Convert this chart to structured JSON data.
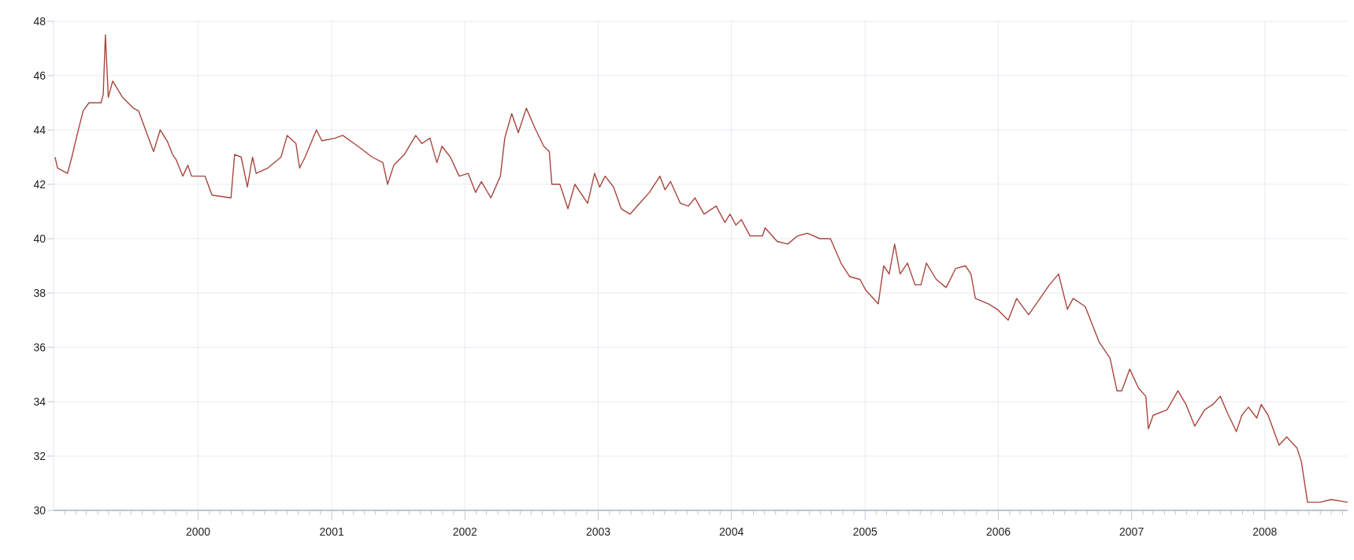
{
  "chart_data": {
    "type": "line",
    "color": "#a8463e",
    "marker": "none",
    "line_style": "solid",
    "grid": true,
    "x": [
      "1998-12-05",
      "1998-12-12",
      "1999-01-08",
      "1999-01-20",
      "1999-02-05",
      "1999-02-20",
      "1999-03-08",
      "1999-04-10",
      "1999-04-16",
      "1999-04-22",
      "1999-04-30",
      "1999-05-12",
      "1999-06-08",
      "1999-07-08",
      "1999-07-22",
      "1999-08-10",
      "1999-09-01",
      "1999-09-19",
      "1999-10-08",
      "1999-10-23",
      "1999-11-02",
      "1999-11-20",
      "1999-12-04",
      "1999-12-14",
      "2000-01-20",
      "2000-02-08",
      "2000-03-31",
      "2000-04-10",
      "2000-04-28",
      "2000-05-15",
      "2000-05-29",
      "2000-06-08",
      "2000-07-10",
      "2000-08-15",
      "2000-09-01",
      "2000-09-25",
      "2000-10-05",
      "2000-10-20",
      "2000-11-20",
      "2000-12-05",
      "2001-01-10",
      "2001-01-31",
      "2001-03-14",
      "2001-04-22",
      "2001-05-21",
      "2001-06-03",
      "2001-06-20",
      "2001-07-19",
      "2001-08-19",
      "2001-09-05",
      "2001-09-27",
      "2001-10-16",
      "2001-10-30",
      "2001-11-22",
      "2001-12-16",
      "2002-01-10",
      "2002-01-30",
      "2002-02-15",
      "2002-03-13",
      "2002-04-08",
      "2002-04-20",
      "2002-05-09",
      "2002-05-27",
      "2002-06-18",
      "2002-07-14",
      "2002-08-05",
      "2002-08-20",
      "2002-08-27",
      "2002-09-18",
      "2002-10-10",
      "2002-10-29",
      "2002-12-03",
      "2002-12-22",
      "2003-01-05",
      "2003-01-20",
      "2003-02-12",
      "2003-03-05",
      "2003-03-29",
      "2003-05-01",
      "2003-05-21",
      "2003-06-19",
      "2003-07-03",
      "2003-07-18",
      "2003-08-14",
      "2003-09-05",
      "2003-09-23",
      "2003-10-18",
      "2003-11-20",
      "2003-12-14",
      "2003-12-28",
      "2004-01-13",
      "2004-01-28",
      "2004-02-21",
      "2004-03-26",
      "2004-04-02",
      "2004-05-05",
      "2004-06-03",
      "2004-06-30",
      "2004-07-27",
      "2004-08-30",
      "2004-09-28",
      "2004-10-27",
      "2004-11-20",
      "2004-12-18",
      "2005-01-03",
      "2005-02-06",
      "2005-02-21",
      "2005-03-08",
      "2005-03-23",
      "2005-04-07",
      "2005-04-27",
      "2005-05-18",
      "2005-06-03",
      "2005-06-18",
      "2005-07-15",
      "2005-08-11",
      "2005-09-06",
      "2005-10-03",
      "2005-10-18",
      "2005-10-30",
      "2005-12-05",
      "2005-12-29",
      "2006-01-28",
      "2006-02-20",
      "2006-03-25",
      "2006-05-21",
      "2006-06-15",
      "2006-07-09",
      "2006-07-25",
      "2006-08-27",
      "2006-10-04",
      "2006-11-03",
      "2006-11-22",
      "2006-12-05",
      "2006-12-27",
      "2007-01-20",
      "2007-02-09",
      "2007-02-16",
      "2007-03-01",
      "2007-04-08",
      "2007-05-08",
      "2007-05-30",
      "2007-06-23",
      "2007-07-20",
      "2007-08-12",
      "2007-09-01",
      "2007-09-20",
      "2007-10-15",
      "2007-10-30",
      "2007-11-17",
      "2007-12-10",
      "2007-12-22",
      "2008-01-10",
      "2008-02-09",
      "2008-03-01",
      "2008-03-29",
      "2008-04-10",
      "2008-04-27",
      "2008-05-31",
      "2008-07-01",
      "2008-08-15"
    ],
    "values": [
      43.0,
      42.6,
      42.4,
      43.0,
      43.9,
      44.7,
      45.0,
      45.0,
      45.3,
      47.5,
      45.2,
      45.8,
      45.2,
      44.8,
      44.7,
      44.0,
      43.2,
      44.0,
      43.6,
      43.1,
      42.9,
      42.3,
      42.7,
      42.3,
      42.3,
      41.6,
      41.5,
      43.1,
      43.0,
      41.9,
      43.0,
      42.4,
      42.6,
      43.0,
      43.8,
      43.5,
      42.6,
      43.0,
      44.0,
      43.6,
      43.7,
      43.8,
      43.4,
      43.0,
      42.8,
      42.0,
      42.7,
      43.1,
      43.8,
      43.5,
      43.7,
      42.8,
      43.4,
      43.0,
      42.3,
      42.4,
      41.7,
      42.1,
      41.5,
      42.3,
      43.7,
      44.6,
      43.9,
      44.8,
      44.0,
      43.4,
      43.2,
      42.0,
      42.0,
      41.1,
      42.0,
      41.3,
      42.4,
      41.9,
      42.3,
      41.9,
      41.1,
      40.9,
      41.4,
      41.7,
      42.3,
      41.8,
      42.1,
      41.3,
      41.2,
      41.5,
      40.9,
      41.2,
      40.6,
      40.9,
      40.5,
      40.7,
      40.1,
      40.1,
      40.4,
      39.9,
      39.8,
      40.1,
      40.2,
      40.0,
      40.0,
      39.1,
      38.6,
      38.5,
      38.1,
      37.6,
      39.0,
      38.7,
      39.8,
      38.7,
      39.1,
      38.3,
      38.3,
      39.1,
      38.5,
      38.2,
      38.9,
      39.0,
      38.7,
      37.8,
      37.6,
      37.4,
      37.0,
      37.8,
      37.2,
      38.3,
      38.7,
      37.4,
      37.8,
      37.5,
      36.2,
      35.6,
      34.4,
      34.4,
      35.2,
      34.5,
      34.2,
      33.0,
      33.5,
      33.7,
      34.4,
      33.9,
      33.1,
      33.7,
      33.9,
      34.2,
      33.6,
      32.9,
      33.5,
      33.8,
      33.4,
      33.9,
      33.5,
      32.4,
      32.7,
      32.3,
      31.8,
      30.3,
      30.3,
      30.4,
      30.3
    ],
    "xlim": [
      "1998-12-01",
      "2008-08-15"
    ],
    "xticks": [
      {
        "value": "1999-01",
        "label": null
      },
      {
        "value": "1999-02",
        "label": null
      },
      {
        "value": "1999-03",
        "label": null
      },
      {
        "value": "1999-04",
        "label": null
      },
      {
        "value": "1999-05",
        "label": null
      },
      {
        "value": "1999-06",
        "label": null
      },
      {
        "value": "1999-07",
        "label": null
      },
      {
        "value": "1999-08",
        "label": null
      },
      {
        "value": "1999-09",
        "label": null
      },
      {
        "value": "1999-10",
        "label": null
      },
      {
        "value": "1999-11",
        "label": null
      },
      {
        "value": "1999-12",
        "label": null
      },
      "2000",
      {
        "value": "2000-02",
        "label": null
      },
      {
        "value": "2000-03",
        "label": null
      },
      {
        "value": "2000-04",
        "label": null
      },
      {
        "value": "2000-05",
        "label": null
      },
      {
        "value": "2000-06",
        "label": null
      },
      {
        "value": "2000-07",
        "label": null
      },
      {
        "value": "2000-08",
        "label": null
      },
      {
        "value": "2000-09",
        "label": null
      },
      {
        "value": "2000-10",
        "label": null
      },
      {
        "value": "2000-11",
        "label": null
      },
      {
        "value": "2000-12",
        "label": null
      },
      "2001",
      {
        "value": "2001-02",
        "label": null
      },
      {
        "value": "2001-03",
        "label": null
      },
      {
        "value": "2001-04",
        "label": null
      },
      {
        "value": "2001-05",
        "label": null
      },
      {
        "value": "2001-06",
        "label": null
      },
      {
        "value": "2001-07",
        "label": null
      },
      {
        "value": "2001-08",
        "label": null
      },
      {
        "value": "2001-09",
        "label": null
      },
      {
        "value": "2001-10",
        "label": null
      },
      {
        "value": "2001-11",
        "label": null
      },
      {
        "value": "2001-12",
        "label": null
      },
      "2002",
      {
        "value": "2002-02",
        "label": null
      },
      {
        "value": "2002-03",
        "label": null
      },
      {
        "value": "2002-04",
        "label": null
      },
      {
        "value": "2002-05",
        "label": null
      },
      {
        "value": "2002-06",
        "label": null
      },
      {
        "value": "2002-07",
        "label": null
      },
      {
        "value": "2002-08",
        "label": null
      },
      {
        "value": "2002-09",
        "label": null
      },
      {
        "value": "2002-10",
        "label": null
      },
      {
        "value": "2002-11",
        "label": null
      },
      {
        "value": "2002-12",
        "label": null
      },
      "2003",
      {
        "value": "2003-02",
        "label": null
      },
      {
        "value": "2003-03",
        "label": null
      },
      {
        "value": "2003-04",
        "label": null
      },
      {
        "value": "2003-05",
        "label": null
      },
      {
        "value": "2003-06",
        "label": null
      },
      {
        "value": "2003-07",
        "label": null
      },
      {
        "value": "2003-08",
        "label": null
      },
      {
        "value": "2003-09",
        "label": null
      },
      {
        "value": "2003-10",
        "label": null
      },
      {
        "value": "2003-11",
        "label": null
      },
      {
        "value": "2003-12",
        "label": null
      },
      "2004",
      {
        "value": "2004-02",
        "label": null
      },
      {
        "value": "2004-03",
        "label": null
      },
      {
        "value": "2004-04",
        "label": null
      },
      {
        "value": "2004-05",
        "label": null
      },
      {
        "value": "2004-06",
        "label": null
      },
      {
        "value": "2004-07",
        "label": null
      },
      {
        "value": "2004-08",
        "label": null
      },
      {
        "value": "2004-09",
        "label": null
      },
      {
        "value": "2004-10",
        "label": null
      },
      {
        "value": "2004-11",
        "label": null
      },
      {
        "value": "2004-12",
        "label": null
      },
      "2005",
      {
        "value": "2005-02",
        "label": null
      },
      {
        "value": "2005-03",
        "label": null
      },
      {
        "value": "2005-04",
        "label": null
      },
      {
        "value": "2005-05",
        "label": null
      },
      {
        "value": "2005-06",
        "label": null
      },
      {
        "value": "2005-07",
        "label": null
      },
      {
        "value": "2005-08",
        "label": null
      },
      {
        "value": "2005-09",
        "label": null
      },
      {
        "value": "2005-10",
        "label": null
      },
      {
        "value": "2005-11",
        "label": null
      },
      {
        "value": "2005-12",
        "label": null
      },
      "2006",
      {
        "value": "2006-02",
        "label": null
      },
      {
        "value": "2006-03",
        "label": null
      },
      {
        "value": "2006-04",
        "label": null
      },
      {
        "value": "2006-05",
        "label": null
      },
      {
        "value": "2006-06",
        "label": null
      },
      {
        "value": "2006-07",
        "label": null
      },
      {
        "value": "2006-08",
        "label": null
      },
      {
        "value": "2006-09",
        "label": null
      },
      {
        "value": "2006-10",
        "label": null
      },
      {
        "value": "2006-11",
        "label": null
      },
      {
        "value": "2006-12",
        "label": null
      },
      "2007",
      {
        "value": "2007-02",
        "label": null
      },
      {
        "value": "2007-03",
        "label": null
      },
      {
        "value": "2007-04",
        "label": null
      },
      {
        "value": "2007-05",
        "label": null
      },
      {
        "value": "2007-06",
        "label": null
      },
      {
        "value": "2007-07",
        "label": null
      },
      {
        "value": "2007-08",
        "label": null
      },
      {
        "value": "2007-09",
        "label": null
      },
      {
        "value": "2007-10",
        "label": null
      },
      {
        "value": "2007-11",
        "label": null
      },
      {
        "value": "2007-12",
        "label": null
      },
      "2008",
      {
        "value": "2008-02",
        "label": null
      },
      {
        "value": "2008-03",
        "label": null
      },
      {
        "value": "2008-04",
        "label": null
      },
      {
        "value": "2008-05",
        "label": null
      },
      {
        "value": "2008-06",
        "label": null
      },
      {
        "value": "2008-07",
        "label": null
      },
      {
        "value": "2008-08",
        "label": null
      }
    ],
    "ylim": [
      30,
      48
    ],
    "yticks": [
      30,
      32,
      34,
      36,
      38,
      40,
      42,
      44,
      46,
      48
    ]
  }
}
